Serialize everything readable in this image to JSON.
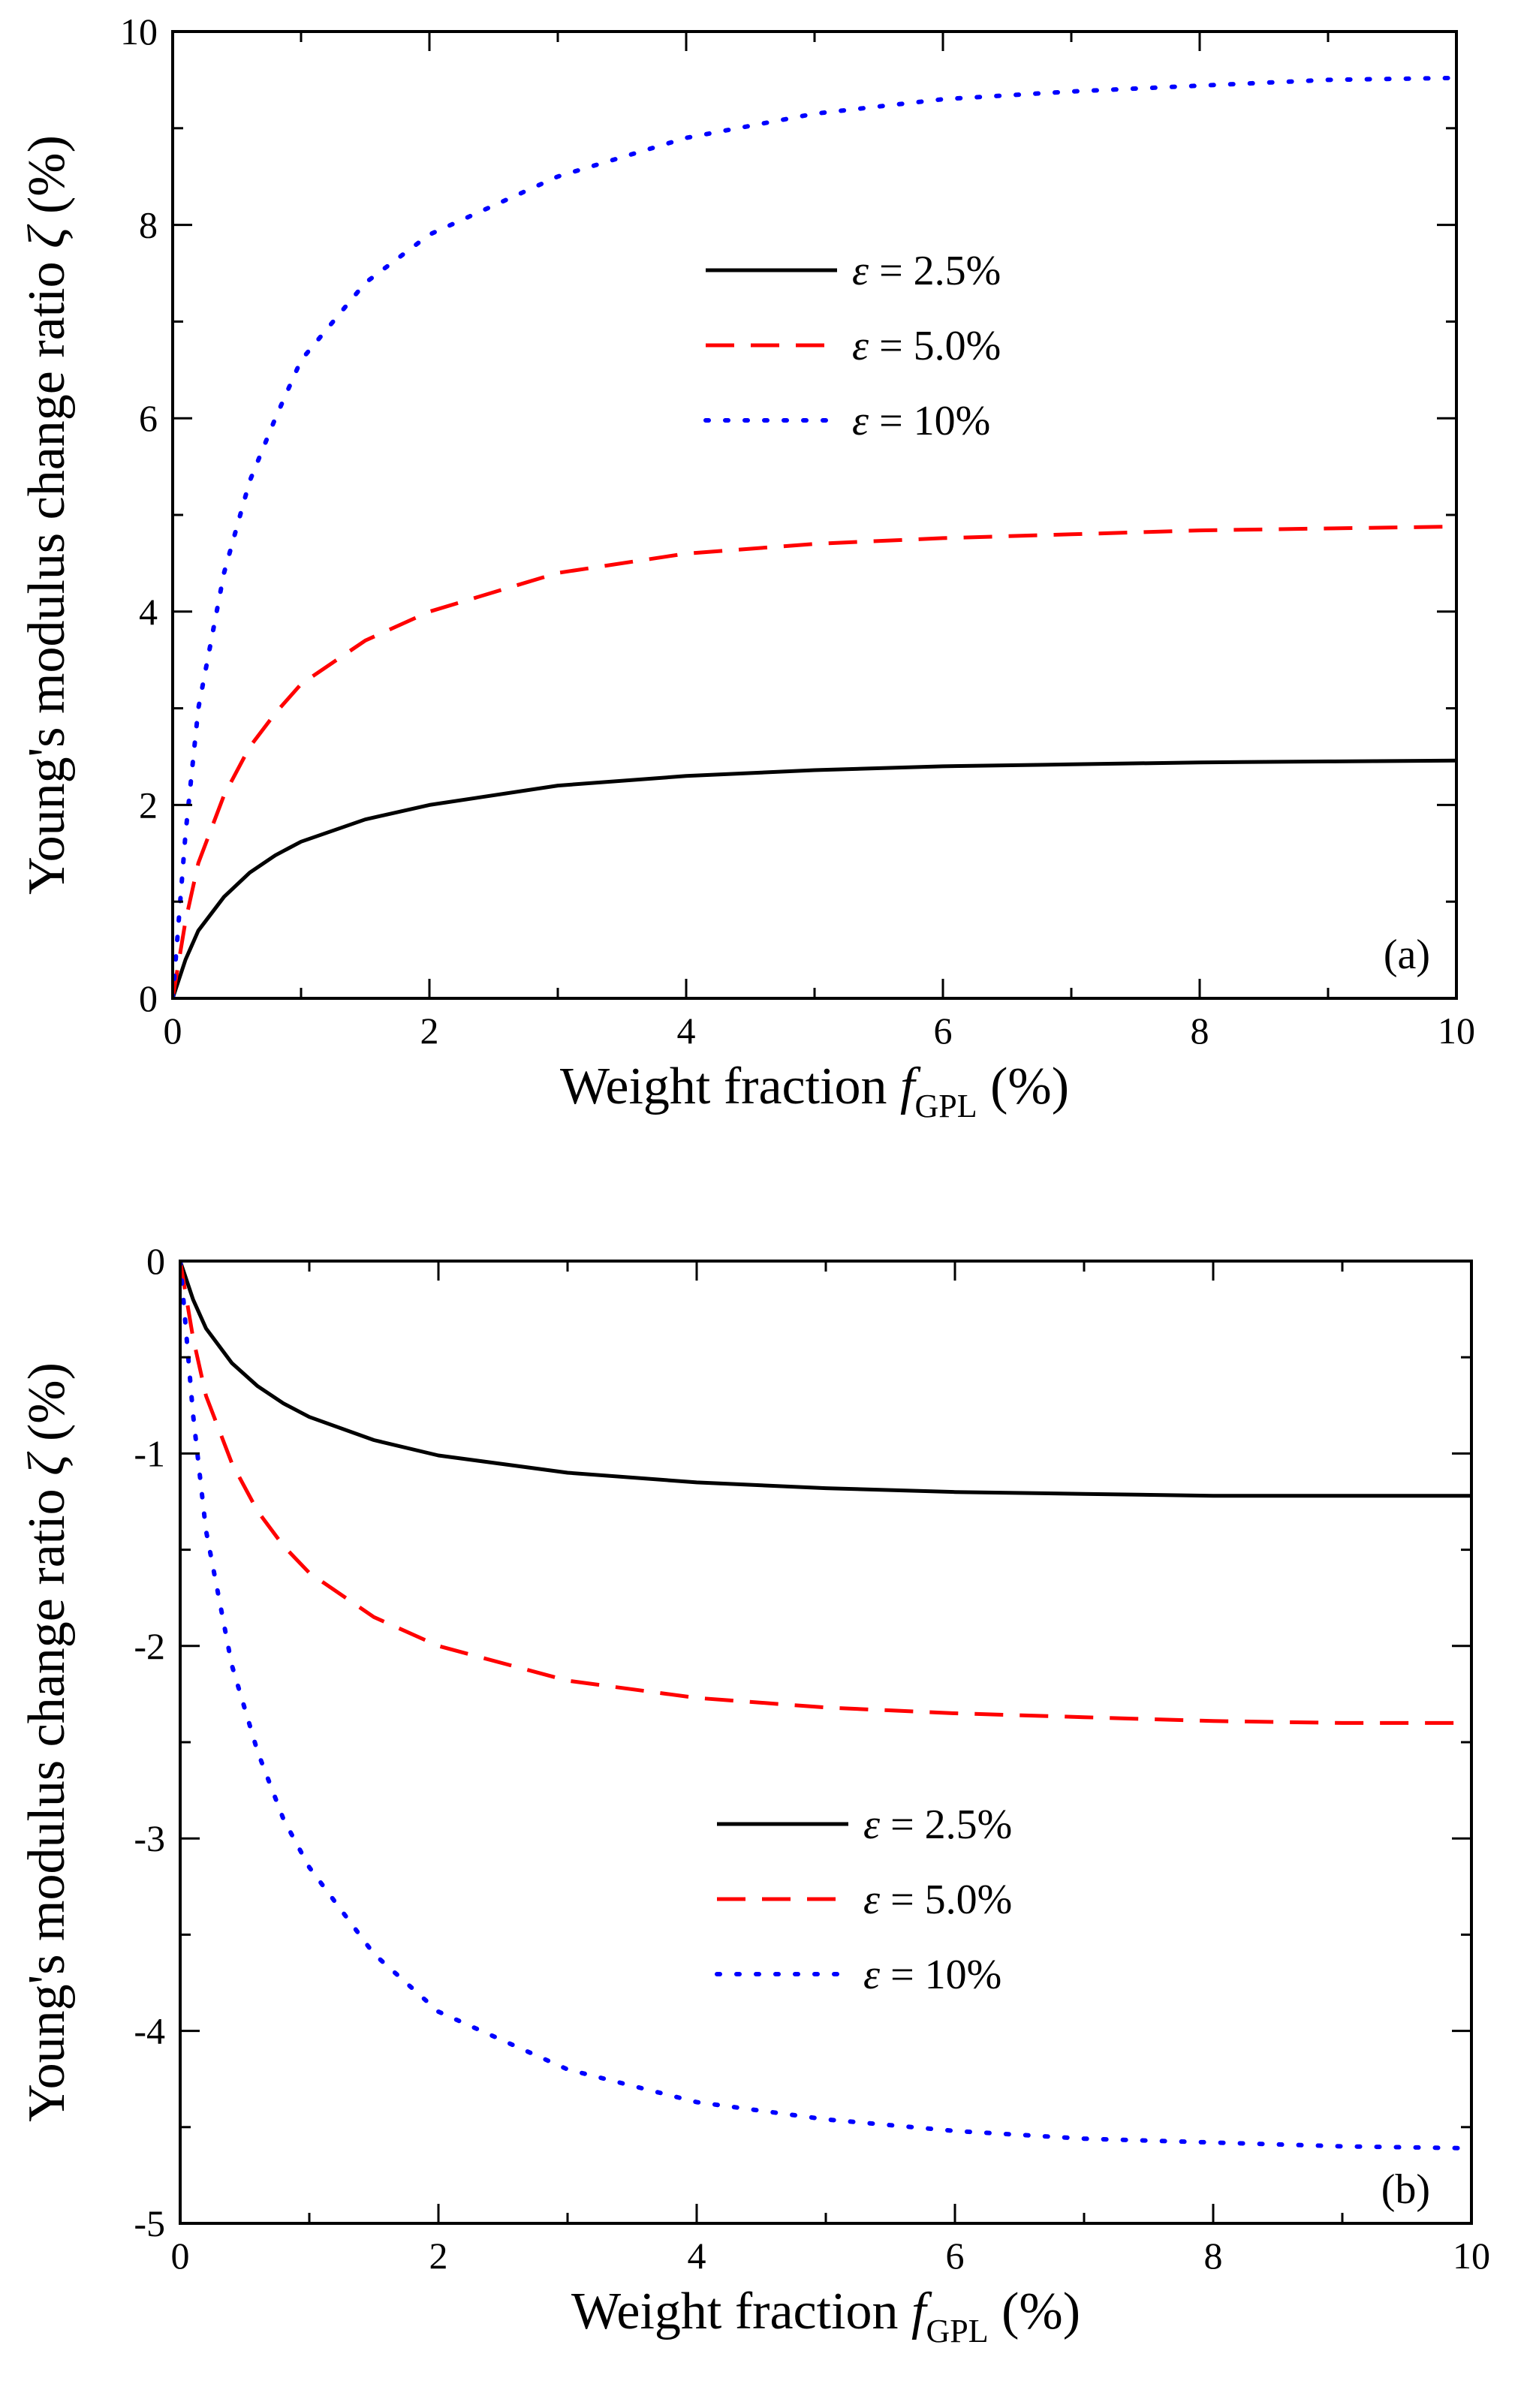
{
  "chart_data": [
    {
      "type": "line",
      "panel_label": "(a)",
      "xlabel": {
        "main": "Weight fraction ",
        "var": "f",
        "sub": "GPL",
        "unit": " (%)"
      },
      "ylabel": {
        "main": "Young's modulus change ratio ",
        "var": "ζ",
        "unit": " (%)"
      },
      "xlim": [
        0,
        10
      ],
      "ylim": [
        0,
        10
      ],
      "xticks": [
        "0",
        "2",
        "4",
        "6",
        "8",
        "10"
      ],
      "yticks": [
        "0",
        "2",
        "4",
        "6",
        "8",
        "10"
      ],
      "legend_position": "upper-center",
      "series": [
        {
          "name": "ε = 2.5%",
          "label_var": "ε",
          "label_text": " = 2.5%",
          "style": "solid",
          "color": "#000000",
          "x": [
            0,
            0.1,
            0.2,
            0.4,
            0.6,
            0.8,
            1,
            1.5,
            2,
            3,
            4,
            5,
            6,
            7,
            8,
            9,
            10
          ],
          "y": [
            0,
            0.4,
            0.7,
            1.05,
            1.3,
            1.48,
            1.62,
            1.85,
            2.0,
            2.2,
            2.3,
            2.36,
            2.4,
            2.42,
            2.44,
            2.45,
            2.46
          ]
        },
        {
          "name": "ε = 5.0%",
          "label_var": "ε",
          "label_text": " = 5.0%",
          "style": "dashed",
          "color": "#ff0000",
          "x": [
            0,
            0.1,
            0.2,
            0.4,
            0.6,
            0.8,
            1,
            1.5,
            2,
            3,
            4,
            5,
            6,
            7,
            8,
            9,
            10
          ],
          "y": [
            0,
            0.8,
            1.4,
            2.1,
            2.6,
            2.95,
            3.25,
            3.7,
            4.0,
            4.4,
            4.6,
            4.7,
            4.76,
            4.8,
            4.84,
            4.86,
            4.88
          ]
        },
        {
          "name": "ε = 10%",
          "label_var": "ε",
          "label_text": " = 10%",
          "style": "dotted",
          "color": "#0000ff",
          "x": [
            0,
            0.1,
            0.2,
            0.4,
            0.6,
            0.8,
            1,
            1.5,
            2,
            3,
            4,
            5,
            6,
            7,
            8,
            9,
            10
          ],
          "y": [
            0,
            1.7,
            3.0,
            4.4,
            5.35,
            6.0,
            6.6,
            7.4,
            7.9,
            8.5,
            8.9,
            9.15,
            9.3,
            9.38,
            9.44,
            9.5,
            9.52
          ]
        }
      ]
    },
    {
      "type": "line",
      "panel_label": "(b)",
      "xlabel": {
        "main": "Weight fraction ",
        "var": "f",
        "sub": "GPL",
        "unit": " (%)"
      },
      "ylabel": {
        "main": "Young's modulus change ratio ",
        "var": "ζ",
        "unit": " (%)"
      },
      "xlim": [
        0,
        10
      ],
      "ylim": [
        -5,
        0
      ],
      "xticks": [
        "0",
        "2",
        "4",
        "6",
        "8",
        "10"
      ],
      "yticks": [
        "-5",
        "-4",
        "-3",
        "-2",
        "-1",
        "0"
      ],
      "legend_position": "lower-center",
      "series": [
        {
          "name": "ε = 2.5%",
          "label_var": "ε",
          "label_text": " = 2.5%",
          "style": "solid",
          "color": "#000000",
          "x": [
            0,
            0.1,
            0.2,
            0.4,
            0.6,
            0.8,
            1,
            1.5,
            2,
            3,
            4,
            5,
            6,
            7,
            8,
            9,
            10
          ],
          "y": [
            0,
            -0.2,
            -0.35,
            -0.53,
            -0.65,
            -0.74,
            -0.81,
            -0.93,
            -1.01,
            -1.1,
            -1.15,
            -1.18,
            -1.2,
            -1.21,
            -1.22,
            -1.22,
            -1.22
          ]
        },
        {
          "name": "ε = 5.0%",
          "label_var": "ε",
          "label_text": " = 5.0%",
          "style": "dashed",
          "color": "#ff0000",
          "x": [
            0,
            0.1,
            0.2,
            0.4,
            0.6,
            0.8,
            1,
            1.5,
            2,
            3,
            4,
            5,
            6,
            7,
            8,
            9,
            10
          ],
          "y": [
            0,
            -0.4,
            -0.7,
            -1.05,
            -1.3,
            -1.48,
            -1.62,
            -1.85,
            -2.0,
            -2.18,
            -2.27,
            -2.32,
            -2.35,
            -2.37,
            -2.39,
            -2.4,
            -2.4
          ]
        },
        {
          "name": "ε = 10%",
          "label_var": "ε",
          "label_text": " = 10%",
          "style": "dotted",
          "color": "#0000ff",
          "x": [
            0,
            0.1,
            0.2,
            0.4,
            0.6,
            0.8,
            1,
            1.5,
            2,
            3,
            4,
            5,
            6,
            7,
            8,
            9,
            10
          ],
          "y": [
            0,
            -0.8,
            -1.4,
            -2.1,
            -2.55,
            -2.9,
            -3.15,
            -3.6,
            -3.9,
            -4.2,
            -4.37,
            -4.46,
            -4.52,
            -4.56,
            -4.58,
            -4.6,
            -4.61
          ]
        }
      ]
    }
  ]
}
